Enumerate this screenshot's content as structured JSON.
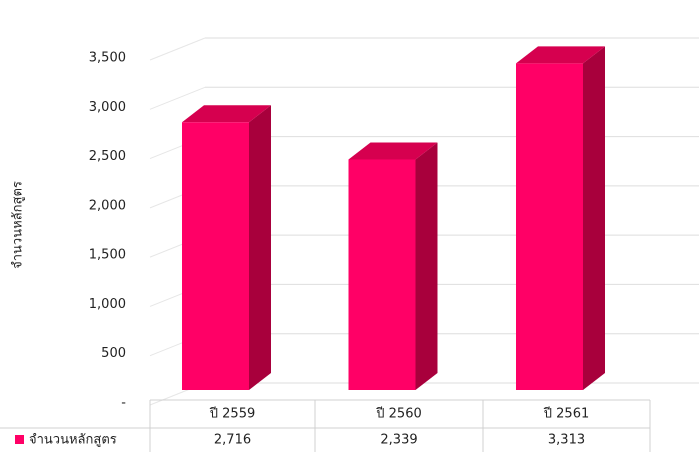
{
  "chart_data": {
    "type": "bar3d",
    "y_axis_label": "จำนวนหลักสูตร",
    "categories": [
      "ปี 2559",
      "ปี 2560",
      "ปี 2561"
    ],
    "series": [
      {
        "name": "จำนวนหลักสูตร",
        "color": "#ff0066",
        "values": [
          2716,
          2339,
          3313
        ],
        "value_labels": [
          "2,716",
          "2,339",
          "3,313"
        ]
      }
    ],
    "ylim": [
      0,
      3500
    ],
    "yticks": [
      {
        "value": 0,
        "label": "-"
      },
      500,
      {
        "value": 1000,
        "label": "1,000"
      },
      {
        "value": 1500,
        "label": "1,500"
      },
      {
        "value": 2000,
        "label": "2,000"
      },
      {
        "value": 2500,
        "label": "2,500"
      },
      {
        "value": 3000,
        "label": "3,000"
      },
      {
        "value": 3500,
        "label": "3,500"
      }
    ],
    "grid": true,
    "data_table": true
  }
}
